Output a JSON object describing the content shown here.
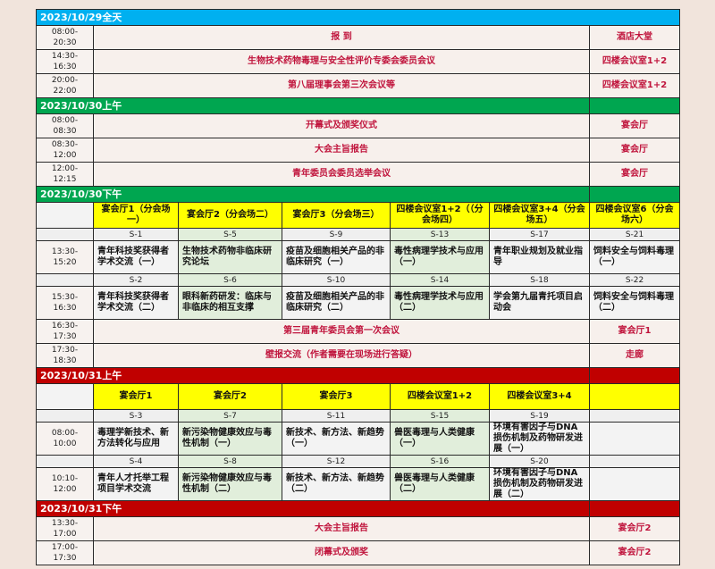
{
  "colors": {
    "blue": "#00b0f0",
    "green": "#00a650",
    "red": "#c00000",
    "room_header": "#ffff00",
    "text_red": "#c0143c"
  },
  "rows": [
    {
      "type": "day",
      "date": "2023/10/29全天",
      "color": "#00b0f0",
      "full": true
    },
    {
      "type": "plenary",
      "time": "08:00-\n20:30",
      "title": "报 到",
      "venue": "酒店大堂"
    },
    {
      "type": "plenary",
      "time": "14:30-\n16:30",
      "title": "生物技术药物毒理与安全性评价专委会委员会议",
      "venue": "四楼会议室1+2"
    },
    {
      "type": "plenary",
      "time": "20:00-\n22:00",
      "title": "第八届理事会第三次会议等",
      "venue": "四楼会议室1+2"
    },
    {
      "type": "day",
      "date": "2023/10/30上午",
      "color": "#00a650"
    },
    {
      "type": "plenary",
      "time": "08:00-\n08:30",
      "title": "开幕式及颁奖仪式",
      "venue": "宴会厅"
    },
    {
      "type": "plenary",
      "time": "08:30-\n12:00",
      "title": "大会主旨报告",
      "venue": "宴会厅"
    },
    {
      "type": "plenary",
      "time": "12:00-\n12:15",
      "title": "青年委员会委员选举会议",
      "venue": "宴会厅"
    },
    {
      "type": "day",
      "date": "2023/10/30下午",
      "color": "#00a650"
    },
    {
      "type": "rooms",
      "cells": [
        "宴会厅1（分会场一）",
        "宴会厅2（分会场二）",
        "宴会厅3（分会场三）",
        "四楼会议室1+2（（分会场四）",
        "四楼会议室3+4（分会场五）",
        "四楼会议室6（分会场六）"
      ]
    },
    {
      "type": "codes",
      "cells": [
        "S-1",
        "S-5",
        "S-9",
        "S-13",
        "S-17",
        "S-21"
      ]
    },
    {
      "type": "sessions",
      "time": "13:30-\n15:20",
      "cells": [
        "青年科技奖获得者学术交流（一）",
        "生物技术药物非临床研究论坛",
        "疫苗及细胞相关产品的非临床研究（一）",
        "毒性病理学技术与应用（一）",
        "青年职业规划及就业指导",
        "饲料安全与饲料毒理（一）"
      ]
    },
    {
      "type": "codes",
      "cells": [
        "S-2",
        "S-6",
        "S-10",
        "S-14",
        "S-18",
        "S-22"
      ]
    },
    {
      "type": "sessions",
      "time": "15:30-\n16:30",
      "cells": [
        "青年科技奖获得者学术交流（二）",
        "眼科新药研发：临床与非临床的相互支撑",
        "疫苗及细胞相关产品的非临床研究（二）",
        "毒性病理学技术与应用（二）",
        "学会第九届青托项目启动会",
        "饲料安全与饲料毒理（二）"
      ]
    },
    {
      "type": "plenary",
      "time": "16:30-\n17:30",
      "title": "第三届青年委员会第一次会议",
      "venue": "宴会厅1"
    },
    {
      "type": "plenary",
      "time": "17:30-\n18:30",
      "title": "壁报交流（作者需要在现场进行答疑）",
      "venue": "走廊"
    },
    {
      "type": "day",
      "date": "2023/10/31上午",
      "color": "#c00000"
    },
    {
      "type": "rooms",
      "cells": [
        "宴会厅1",
        "宴会厅2",
        "宴会厅3",
        "四楼会议室1+2",
        "四楼会议室3+4",
        ""
      ]
    },
    {
      "type": "codes",
      "cells": [
        "S-3",
        "S-7",
        "S-11",
        "S-15",
        "S-19",
        ""
      ]
    },
    {
      "type": "sessions",
      "time": "08:00-\n10:00",
      "cells": [
        "毒理学新技术、新方法转化与应用",
        "新污染物健康效应与毒性机制（一）",
        "新技术、新方法、新趋势（一）",
        "兽医毒理与人类健康（一）",
        "环境有害因子与DNA损伤机制及药物研发进展（一）",
        ""
      ]
    },
    {
      "type": "codes",
      "cells": [
        "S-4",
        "S-8",
        "S-12",
        "S-16",
        "S-20",
        ""
      ]
    },
    {
      "type": "sessions",
      "time": "10:10-\n12:00",
      "cells": [
        "青年人才托举工程项目学术交流",
        "新污染物健康效应与毒性机制（二）",
        "新技术、新方法、新趋势（二）",
        "兽医毒理与人类健康（二）",
        "环境有害因子与DNA损伤机制及药物研发进展（二）",
        ""
      ]
    },
    {
      "type": "day",
      "date": "2023/10/31下午",
      "color": "#c00000"
    },
    {
      "type": "plenary",
      "time": "13:30-\n17:00",
      "title": "大会主旨报告",
      "venue": "宴会厅2"
    },
    {
      "type": "plenary",
      "time": "17:00-\n17:30",
      "title": "闭幕式及颁奖",
      "venue": "宴会厅2"
    }
  ]
}
